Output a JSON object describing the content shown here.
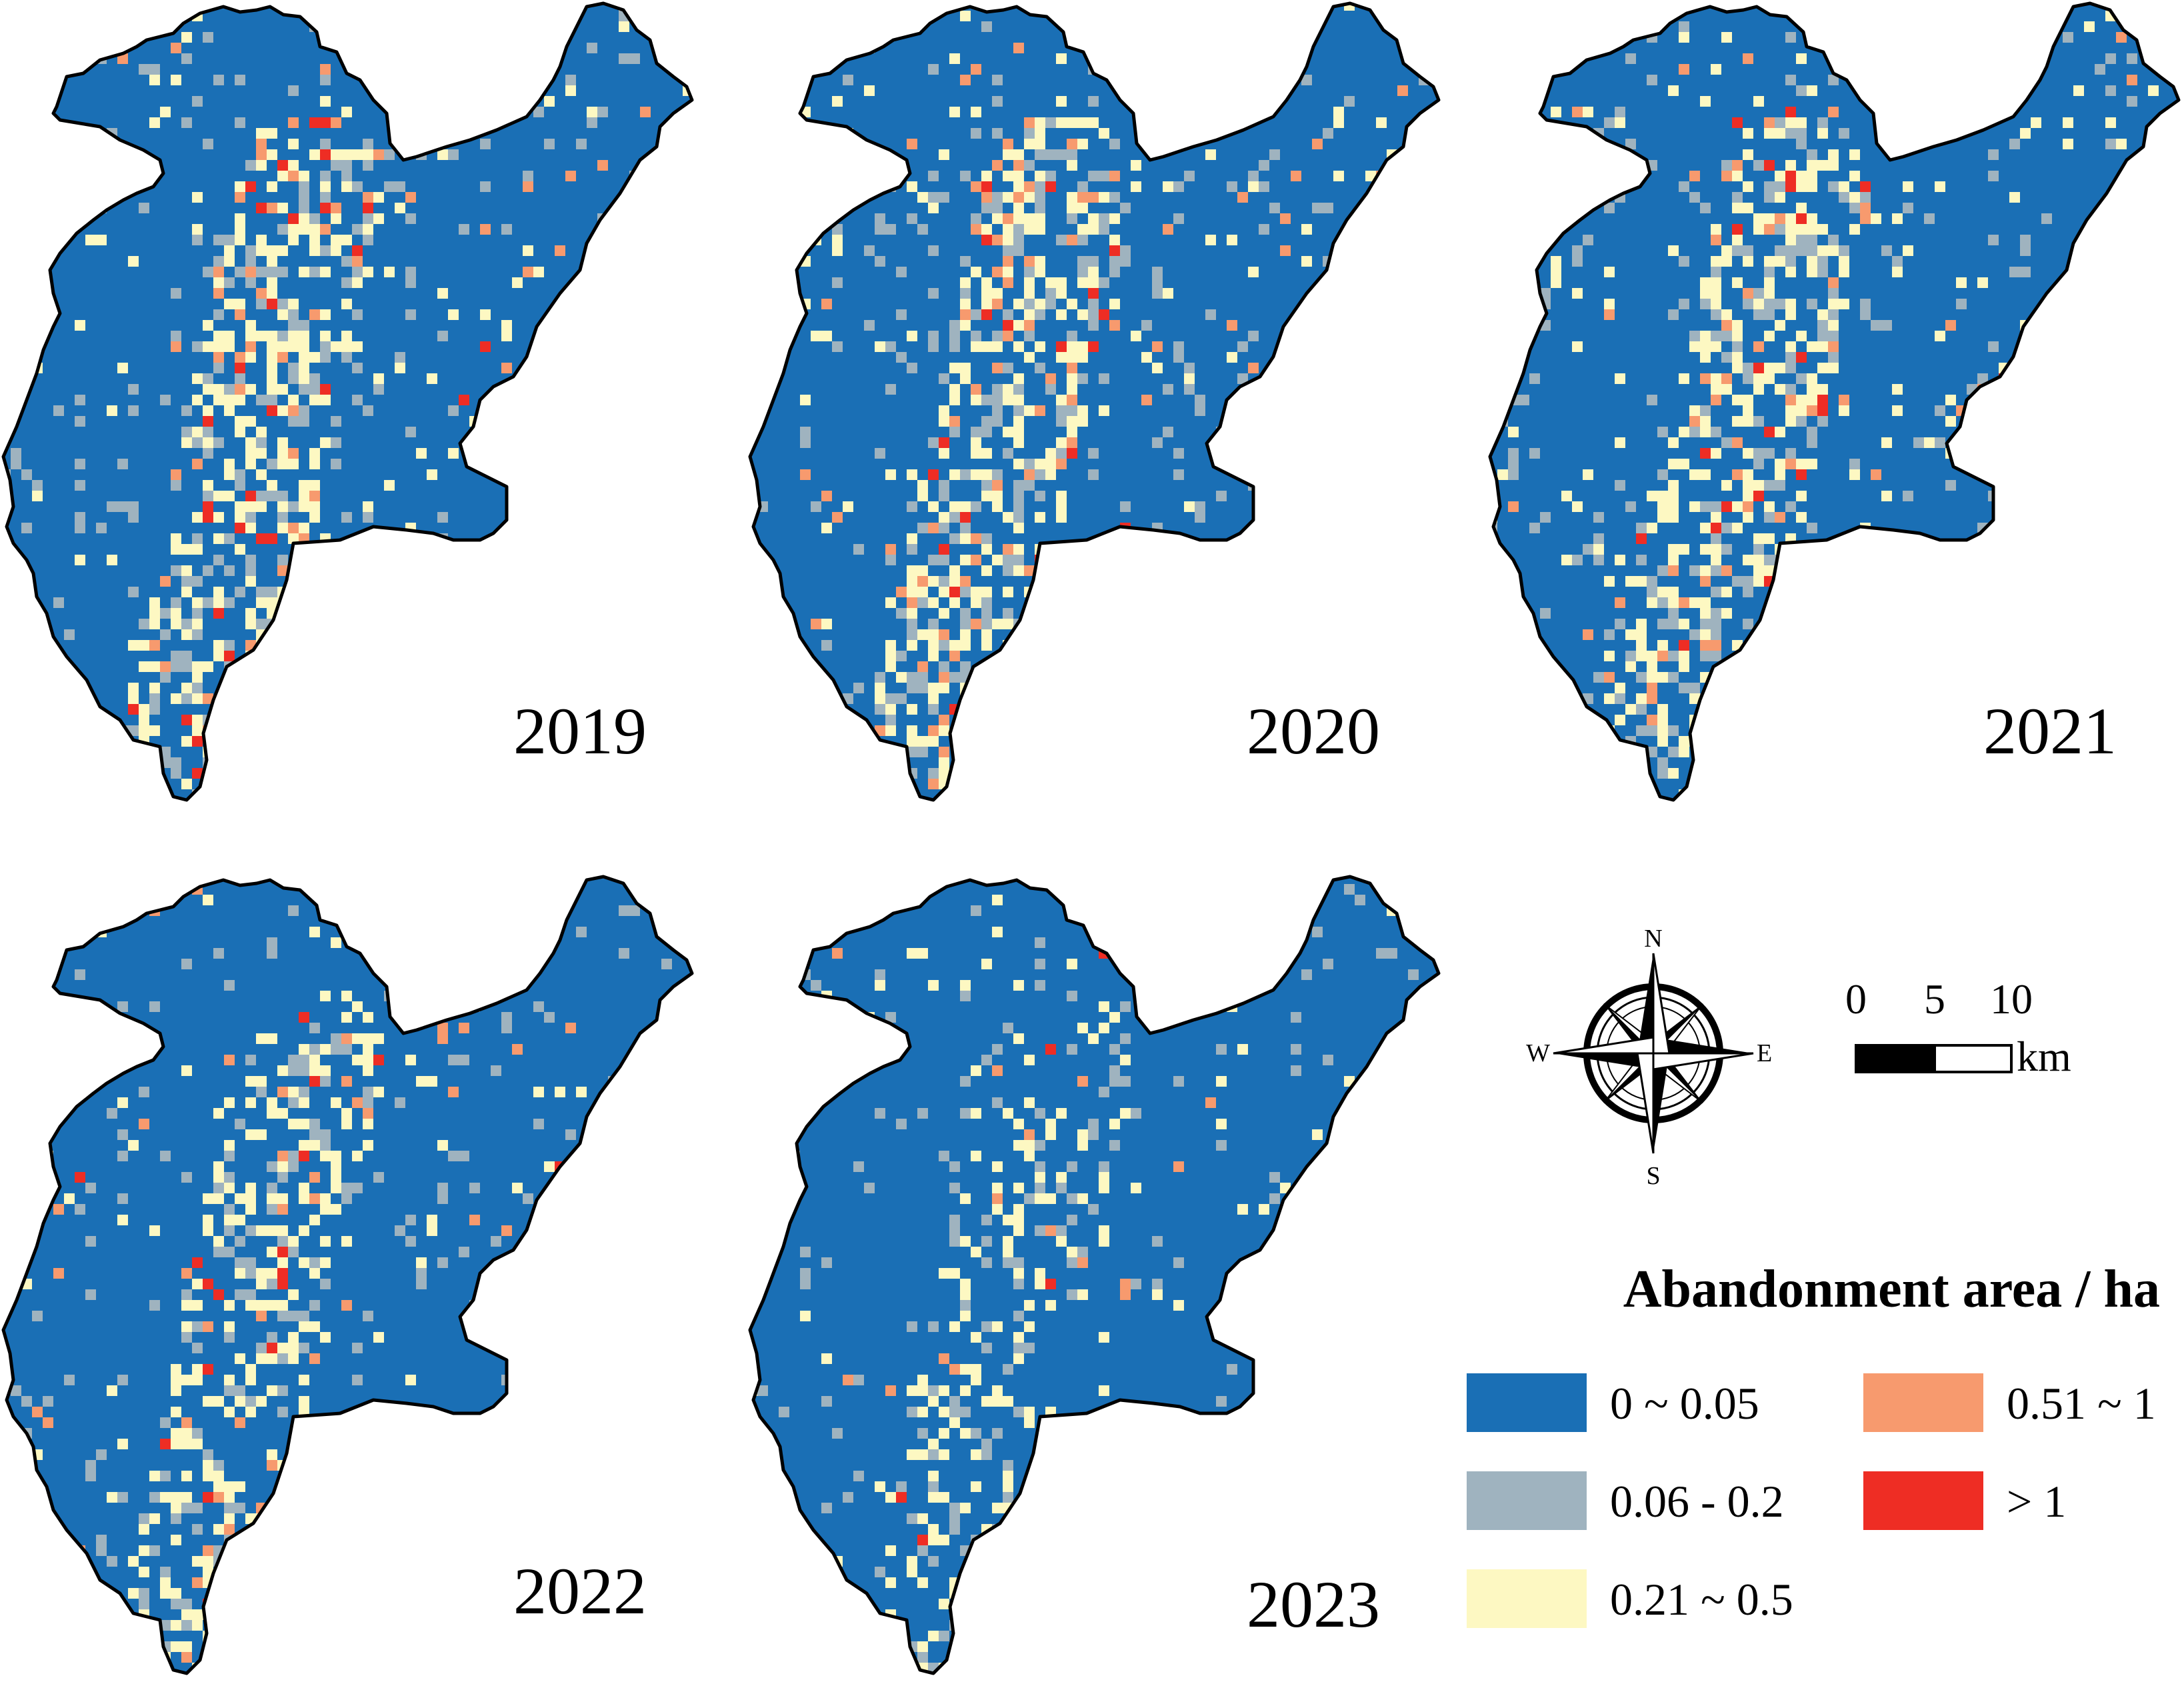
{
  "panels": [
    {
      "year": "2019",
      "density": 0.3,
      "hot": 0.55,
      "seed": 11
    },
    {
      "year": "2020",
      "density": 0.32,
      "hot": 0.6,
      "seed": 23
    },
    {
      "year": "2021",
      "density": 0.32,
      "hot": 0.5,
      "seed": 37
    },
    {
      "year": "2022",
      "density": 0.26,
      "hot": 0.4,
      "seed": 41
    },
    {
      "year": "2023",
      "density": 0.18,
      "hot": 0.22,
      "seed": 53
    }
  ],
  "compass": {
    "north": "N",
    "south": "S",
    "east": "E",
    "west": "W"
  },
  "scale_bar": {
    "ticks": [
      "0",
      "5",
      "10"
    ],
    "unit": "km"
  },
  "legend": {
    "title": "Abandonment area / ha",
    "items": [
      {
        "label": "0 ~ 0.05",
        "color": "#1a6fb5"
      },
      {
        "label": "0.06 - 0.2",
        "color": "#9fb3bf"
      },
      {
        "label": "0.21 ~ 0.5",
        "color": "#fdf8c2"
      },
      {
        "label": "0.51 ~ 1",
        "color": "#f79a6e"
      },
      {
        "label": "> 1",
        "color": "#ee2d24"
      }
    ]
  }
}
